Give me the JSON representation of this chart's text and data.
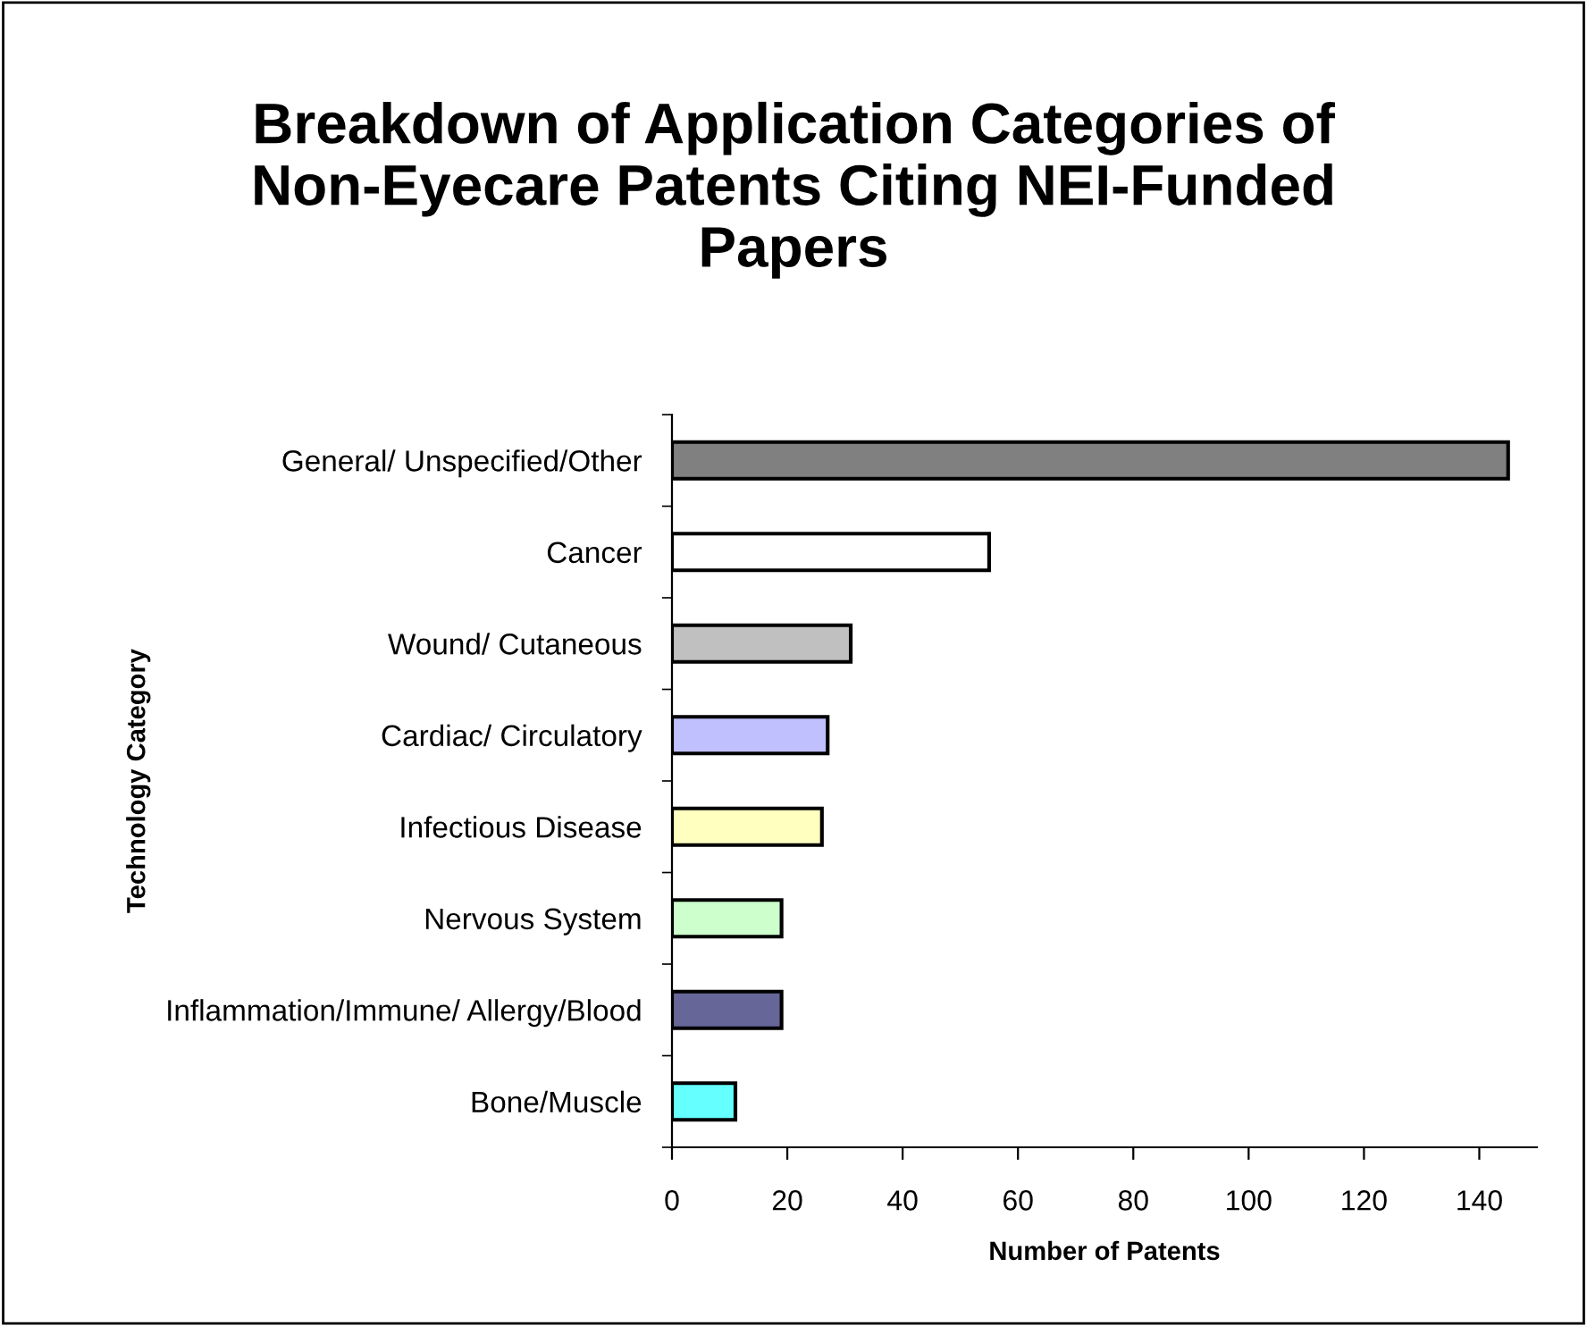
{
  "chart_data": {
    "type": "bar",
    "orientation": "horizontal",
    "title": "Breakdown of Application Categories of Non-Eyecare Patents Citing NEI-Funded Papers",
    "xlabel": "Number of Patents",
    "ylabel": "Technology Category",
    "categories": [
      "General/ Unspecified/Other",
      "Cancer",
      "Wound/ Cutaneous",
      "Cardiac/ Circulatory",
      "Infectious Disease",
      "Nervous System",
      "Inflammation/Immune/ Allergy/Blood",
      "Bone/Muscle"
    ],
    "values": [
      145,
      55,
      31,
      27,
      26,
      19,
      19,
      11
    ],
    "colors": [
      "#808080",
      "#ffffff",
      "#c0c0c0",
      "#c0c0ff",
      "#ffffc0",
      "#ccffcc",
      "#666699",
      "#66ffff"
    ],
    "xlim": [
      0,
      150
    ],
    "xticks": [
      0,
      20,
      40,
      60,
      80,
      100,
      120,
      140
    ],
    "grid": false,
    "legend": false
  }
}
